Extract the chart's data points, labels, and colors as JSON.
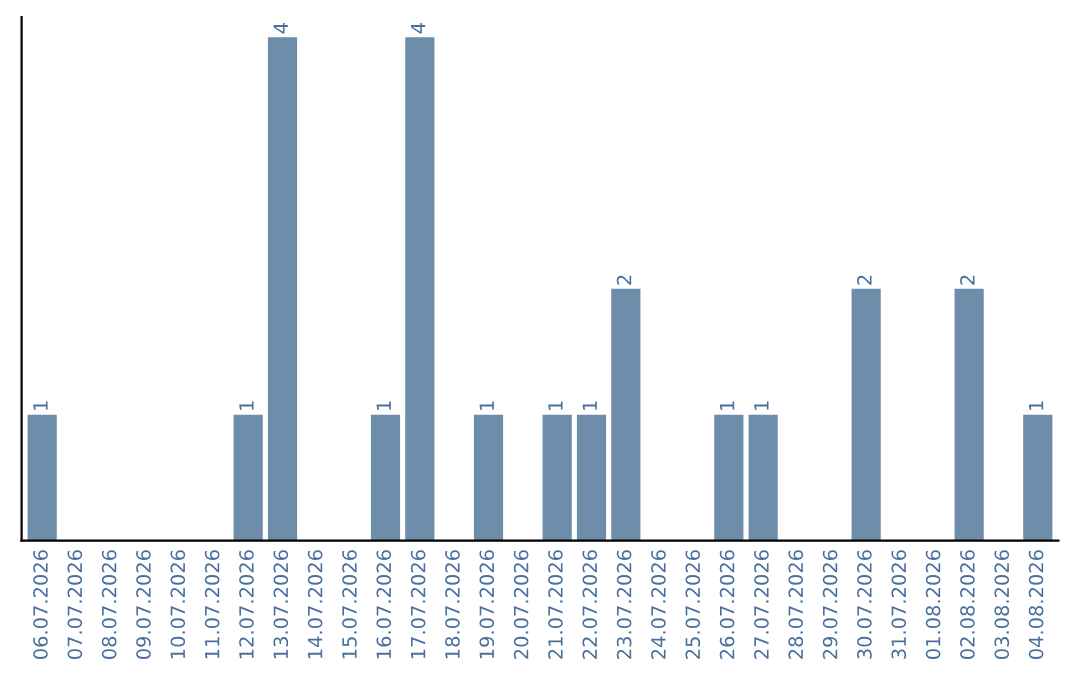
{
  "chart_data": {
    "type": "bar",
    "categories": [
      "06.07.2026",
      "07.07.2026",
      "08.07.2026",
      "09.07.2026",
      "10.07.2026",
      "11.07.2026",
      "12.07.2026",
      "13.07.2026",
      "14.07.2026",
      "15.07.2026",
      "16.07.2026",
      "17.07.2026",
      "18.07.2026",
      "19.07.2026",
      "20.07.2026",
      "21.07.2026",
      "22.07.2026",
      "23.07.2026",
      "24.07.2026",
      "25.07.2026",
      "26.07.2026",
      "27.07.2026",
      "28.07.2026",
      "29.07.2026",
      "30.07.2026",
      "31.07.2026",
      "01.08.2026",
      "02.08.2026",
      "03.08.2026",
      "04.08.2026"
    ],
    "values": [
      1,
      0,
      0,
      0,
      0,
      0,
      1,
      4,
      0,
      0,
      1,
      4,
      0,
      1,
      0,
      1,
      1,
      2,
      0,
      0,
      1,
      1,
      0,
      0,
      2,
      0,
      0,
      2,
      0,
      1
    ],
    "value_labels": [
      "1",
      null,
      null,
      null,
      null,
      null,
      "1",
      "4",
      null,
      null,
      "1",
      "4",
      null,
      "1",
      null,
      "1",
      "1",
      "2",
      null,
      null,
      "1",
      "1",
      null,
      null,
      "2",
      null,
      null,
      "2",
      null,
      "1"
    ],
    "color": "#6d8dab",
    "grid": false,
    "legend": false
  }
}
